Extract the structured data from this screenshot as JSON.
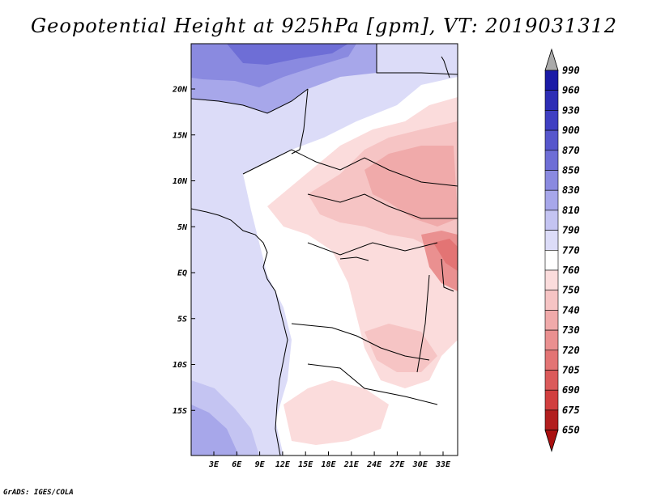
{
  "title": "Geopotential Height at 925hPa [gpm], VT: 2019031312",
  "footer": "GrADS: IGES/COLA",
  "map": {
    "lat_labels": [
      "20N",
      "15N",
      "10N",
      "5N",
      "EQ",
      "5S",
      "10S",
      "15S"
    ],
    "lon_labels": [
      "3E",
      "6E",
      "9E",
      "12E",
      "15E",
      "18E",
      "21E",
      "24E",
      "27E",
      "30E",
      "33E"
    ],
    "lat_range": [
      -20,
      24
    ],
    "lon_range": [
      0,
      35
    ],
    "variable": "Geopotential Height",
    "level": "925hPa",
    "units": "gpm",
    "valid_time": "2019031312"
  },
  "colorbar": {
    "labels": [
      "990",
      "960",
      "930",
      "900",
      "870",
      "850",
      "830",
      "810",
      "790",
      "770",
      "760",
      "750",
      "740",
      "730",
      "720",
      "705",
      "690",
      "675",
      "650"
    ],
    "colors": [
      "#0a0a8c",
      "#1a1aa6",
      "#2d2db5",
      "#3f3fc2",
      "#5656cc",
      "#6e6ed6",
      "#8a8ae0",
      "#a7a7ea",
      "#c4c4f2",
      "#dcdcf8",
      "#ffffff",
      "#fbdcdc",
      "#f6c4c4",
      "#f0aaaa",
      "#ea9090",
      "#e37474",
      "#db5a5a",
      "#d13f3f",
      "#b21e1e",
      "#9a0a0a"
    ],
    "top_arrow_color": "#aaaaaa",
    "bottom_arrow_color": "#aa1010"
  }
}
